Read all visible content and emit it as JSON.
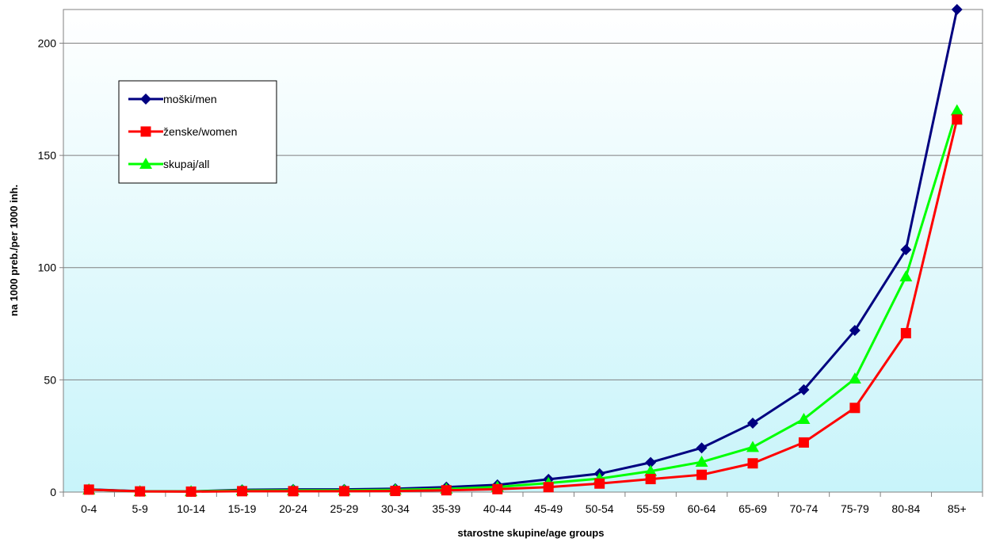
{
  "chart_data": {
    "type": "line",
    "categories": [
      "0-4",
      "5-9",
      "10-14",
      "15-19",
      "20-24",
      "25-29",
      "30-34",
      "35-39",
      "40-44",
      "45-49",
      "50-54",
      "55-59",
      "60-64",
      "65-69",
      "70-74",
      "75-79",
      "80-84",
      "85+"
    ],
    "series": [
      {
        "name": "moški/men",
        "color": "#000080",
        "marker": "diamond",
        "values": [
          1.2,
          0.4,
          0.3,
          1.0,
          1.2,
          1.2,
          1.5,
          2.2,
          3.2,
          5.7,
          8.2,
          13.2,
          19.7,
          30.7,
          45.6,
          72.0,
          108.0,
          215.0
        ]
      },
      {
        "name": "ženske/women",
        "color": "#ff0000",
        "marker": "square",
        "values": [
          1.1,
          0.3,
          0.2,
          0.4,
          0.4,
          0.4,
          0.5,
          0.8,
          1.3,
          2.2,
          3.8,
          5.8,
          7.7,
          12.8,
          22.1,
          37.5,
          70.8,
          166.0
        ]
      },
      {
        "name": "skupaj/all",
        "color": "#00ff00",
        "marker": "triangle",
        "values": [
          1.1,
          0.3,
          0.3,
          0.7,
          0.8,
          0.8,
          1.0,
          1.4,
          2.3,
          4.0,
          6.0,
          9.3,
          13.4,
          20.0,
          32.5,
          50.5,
          96.0,
          170.0
        ]
      }
    ],
    "xlabel": "starostne skupine/age groups",
    "ylabel": "na 1000 preb./per 1000 inh.",
    "ylim": [
      0,
      215
    ],
    "yticks": [
      0,
      50,
      100,
      150,
      200
    ],
    "grid": true,
    "legend_position": "top-left"
  }
}
